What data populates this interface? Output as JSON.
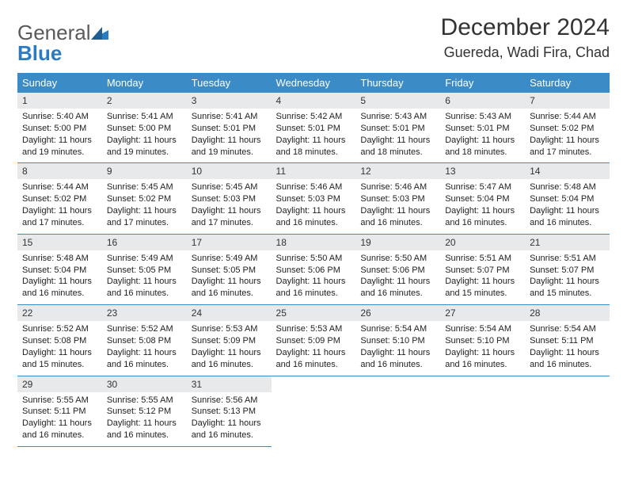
{
  "logo": {
    "general": "General",
    "blue": "Blue"
  },
  "title": "December 2024",
  "location": "Guereda, Wadi Fira, Chad",
  "colors": {
    "header_bg": "#3b8bc7",
    "header_text": "#ffffff",
    "daynum_bg": "#e8e9ea",
    "border": "#3b8bc7",
    "body_text": "#222222",
    "logo_blue": "#2a7bbf"
  },
  "weekdays": [
    "Sunday",
    "Monday",
    "Tuesday",
    "Wednesday",
    "Thursday",
    "Friday",
    "Saturday"
  ],
  "weeks": [
    [
      {
        "num": "1",
        "sunrise": "5:40 AM",
        "sunset": "5:00 PM",
        "daylight": "11 hours and 19 minutes."
      },
      {
        "num": "2",
        "sunrise": "5:41 AM",
        "sunset": "5:00 PM",
        "daylight": "11 hours and 19 minutes."
      },
      {
        "num": "3",
        "sunrise": "5:41 AM",
        "sunset": "5:01 PM",
        "daylight": "11 hours and 19 minutes."
      },
      {
        "num": "4",
        "sunrise": "5:42 AM",
        "sunset": "5:01 PM",
        "daylight": "11 hours and 18 minutes."
      },
      {
        "num": "5",
        "sunrise": "5:43 AM",
        "sunset": "5:01 PM",
        "daylight": "11 hours and 18 minutes."
      },
      {
        "num": "6",
        "sunrise": "5:43 AM",
        "sunset": "5:01 PM",
        "daylight": "11 hours and 18 minutes."
      },
      {
        "num": "7",
        "sunrise": "5:44 AM",
        "sunset": "5:02 PM",
        "daylight": "11 hours and 17 minutes."
      }
    ],
    [
      {
        "num": "8",
        "sunrise": "5:44 AM",
        "sunset": "5:02 PM",
        "daylight": "11 hours and 17 minutes."
      },
      {
        "num": "9",
        "sunrise": "5:45 AM",
        "sunset": "5:02 PM",
        "daylight": "11 hours and 17 minutes."
      },
      {
        "num": "10",
        "sunrise": "5:45 AM",
        "sunset": "5:03 PM",
        "daylight": "11 hours and 17 minutes."
      },
      {
        "num": "11",
        "sunrise": "5:46 AM",
        "sunset": "5:03 PM",
        "daylight": "11 hours and 16 minutes."
      },
      {
        "num": "12",
        "sunrise": "5:46 AM",
        "sunset": "5:03 PM",
        "daylight": "11 hours and 16 minutes."
      },
      {
        "num": "13",
        "sunrise": "5:47 AM",
        "sunset": "5:04 PM",
        "daylight": "11 hours and 16 minutes."
      },
      {
        "num": "14",
        "sunrise": "5:48 AM",
        "sunset": "5:04 PM",
        "daylight": "11 hours and 16 minutes."
      }
    ],
    [
      {
        "num": "15",
        "sunrise": "5:48 AM",
        "sunset": "5:04 PM",
        "daylight": "11 hours and 16 minutes."
      },
      {
        "num": "16",
        "sunrise": "5:49 AM",
        "sunset": "5:05 PM",
        "daylight": "11 hours and 16 minutes."
      },
      {
        "num": "17",
        "sunrise": "5:49 AM",
        "sunset": "5:05 PM",
        "daylight": "11 hours and 16 minutes."
      },
      {
        "num": "18",
        "sunrise": "5:50 AM",
        "sunset": "5:06 PM",
        "daylight": "11 hours and 16 minutes."
      },
      {
        "num": "19",
        "sunrise": "5:50 AM",
        "sunset": "5:06 PM",
        "daylight": "11 hours and 16 minutes."
      },
      {
        "num": "20",
        "sunrise": "5:51 AM",
        "sunset": "5:07 PM",
        "daylight": "11 hours and 15 minutes."
      },
      {
        "num": "21",
        "sunrise": "5:51 AM",
        "sunset": "5:07 PM",
        "daylight": "11 hours and 15 minutes."
      }
    ],
    [
      {
        "num": "22",
        "sunrise": "5:52 AM",
        "sunset": "5:08 PM",
        "daylight": "11 hours and 15 minutes."
      },
      {
        "num": "23",
        "sunrise": "5:52 AM",
        "sunset": "5:08 PM",
        "daylight": "11 hours and 16 minutes."
      },
      {
        "num": "24",
        "sunrise": "5:53 AM",
        "sunset": "5:09 PM",
        "daylight": "11 hours and 16 minutes."
      },
      {
        "num": "25",
        "sunrise": "5:53 AM",
        "sunset": "5:09 PM",
        "daylight": "11 hours and 16 minutes."
      },
      {
        "num": "26",
        "sunrise": "5:54 AM",
        "sunset": "5:10 PM",
        "daylight": "11 hours and 16 minutes."
      },
      {
        "num": "27",
        "sunrise": "5:54 AM",
        "sunset": "5:10 PM",
        "daylight": "11 hours and 16 minutes."
      },
      {
        "num": "28",
        "sunrise": "5:54 AM",
        "sunset": "5:11 PM",
        "daylight": "11 hours and 16 minutes."
      }
    ],
    [
      {
        "num": "29",
        "sunrise": "5:55 AM",
        "sunset": "5:11 PM",
        "daylight": "11 hours and 16 minutes."
      },
      {
        "num": "30",
        "sunrise": "5:55 AM",
        "sunset": "5:12 PM",
        "daylight": "11 hours and 16 minutes."
      },
      {
        "num": "31",
        "sunrise": "5:56 AM",
        "sunset": "5:13 PM",
        "daylight": "11 hours and 16 minutes."
      },
      null,
      null,
      null,
      null
    ]
  ],
  "labels": {
    "sunrise": "Sunrise:",
    "sunset": "Sunset:",
    "daylight": "Daylight:"
  }
}
